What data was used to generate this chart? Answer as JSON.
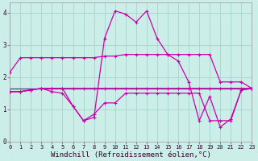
{
  "xlabel": "Windchill (Refroidissement éolien,°C)",
  "bg_color": "#cceee8",
  "grid_color": "#aad8d0",
  "line_color": "#cc00aa",
  "hline_color": "#444466",
  "ylim": [
    0,
    4.3
  ],
  "xlim": [
    0,
    23
  ],
  "yticks": [
    0,
    1,
    2,
    3,
    4
  ],
  "xticks": [
    0,
    1,
    2,
    3,
    4,
    5,
    6,
    7,
    8,
    9,
    10,
    11,
    12,
    13,
    14,
    15,
    16,
    17,
    18,
    19,
    20,
    21,
    22,
    23
  ],
  "series1_x": [
    0,
    1,
    2,
    3,
    4,
    5,
    6,
    7,
    8,
    9,
    10,
    11,
    12,
    13,
    14,
    15,
    16,
    17,
    18,
    19,
    20,
    21,
    22,
    23
  ],
  "series1_y": [
    2.15,
    2.6,
    2.6,
    2.6,
    2.6,
    2.6,
    2.6,
    2.6,
    2.6,
    2.65,
    2.65,
    2.7,
    2.7,
    2.7,
    2.7,
    2.7,
    2.7,
    2.7,
    2.7,
    2.7,
    1.85,
    1.85,
    1.85,
    1.65
  ],
  "series2_x": [
    0,
    1,
    2,
    3,
    4,
    5,
    6,
    7,
    8,
    9,
    10,
    11,
    12,
    13,
    14,
    15,
    16,
    17,
    18,
    19,
    20,
    21,
    22,
    23
  ],
  "series2_y": [
    1.55,
    1.55,
    1.6,
    1.65,
    1.65,
    1.65,
    1.65,
    1.65,
    1.65,
    1.65,
    1.65,
    1.65,
    1.65,
    1.65,
    1.65,
    1.65,
    1.65,
    1.65,
    1.65,
    1.65,
    1.65,
    1.65,
    1.65,
    1.65
  ],
  "series3_x": [
    0,
    1,
    2,
    3,
    4,
    5,
    6,
    7,
    8,
    9,
    10,
    11,
    12,
    13,
    14,
    15,
    16,
    17,
    18,
    19,
    20,
    21,
    22,
    23
  ],
  "series3_y": [
    1.55,
    1.55,
    1.6,
    1.65,
    1.65,
    1.65,
    1.1,
    0.65,
    0.75,
    3.2,
    4.05,
    3.95,
    3.7,
    4.05,
    3.2,
    2.7,
    2.5,
    1.85,
    0.65,
    1.4,
    0.45,
    0.7,
    1.6,
    1.65
  ],
  "series4_x": [
    0,
    1,
    2,
    3,
    4,
    5,
    6,
    7,
    8,
    9,
    10,
    11,
    12,
    13,
    14,
    15,
    16,
    17,
    18,
    19,
    20,
    21,
    22,
    23
  ],
  "series4_y": [
    1.55,
    1.55,
    1.6,
    1.65,
    1.55,
    1.5,
    1.1,
    0.65,
    0.85,
    1.2,
    1.2,
    1.5,
    1.5,
    1.5,
    1.5,
    1.5,
    1.5,
    1.5,
    1.5,
    0.65,
    0.65,
    0.65,
    1.6,
    1.65
  ],
  "hline_y": 1.65,
  "axis_fontsize": 6.5,
  "tick_fontsize": 5.5
}
